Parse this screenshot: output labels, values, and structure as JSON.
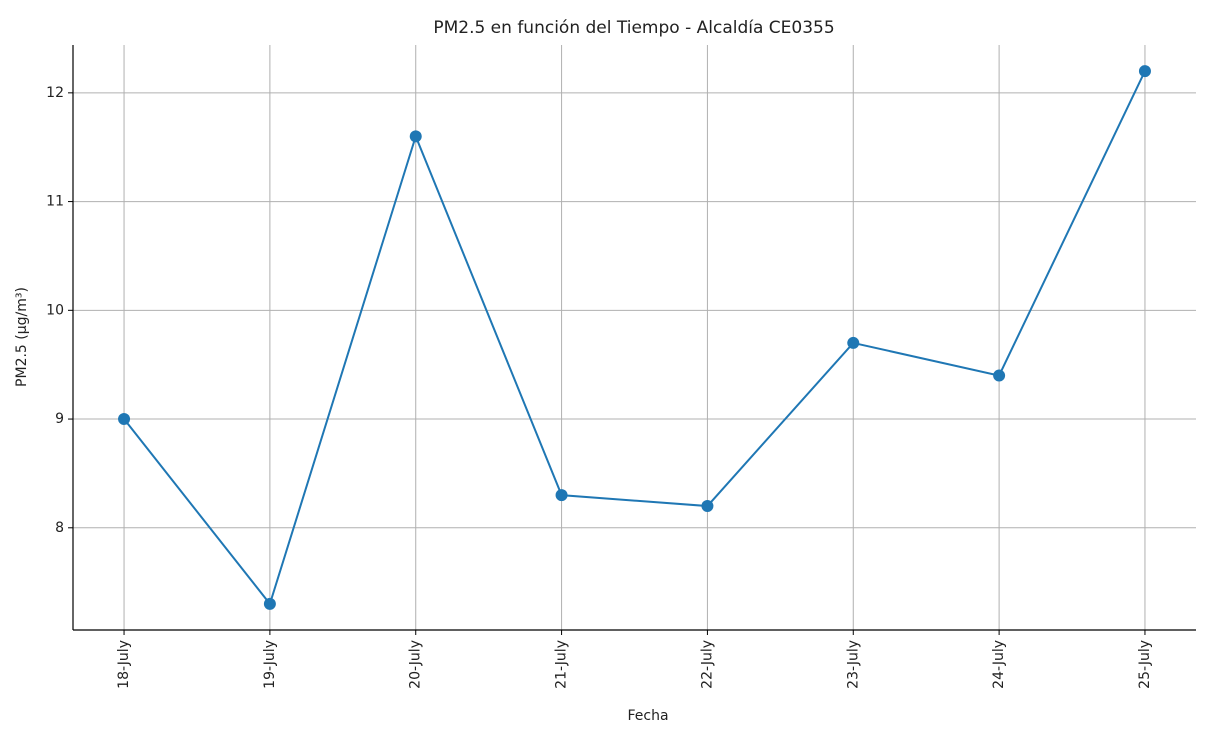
{
  "chart_data": {
    "type": "line",
    "title": "PM2.5 en función del Tiempo - Alcaldía CE0355",
    "x_label": "Fecha",
    "y_label": "PM2.5 (µg/m³)",
    "categories": [
      "18-July",
      "19-July",
      "20-July",
      "21-July",
      "22-July",
      "23-July",
      "24-July",
      "25-July"
    ],
    "series": [
      {
        "name": "PM2.5",
        "color": "#1f77b4",
        "values": [
          9.0,
          7.3,
          11.6,
          8.3,
          8.2,
          9.7,
          9.4,
          12.2
        ]
      }
    ],
    "ylim": [
      7.06,
      12.44
    ],
    "yticks": [
      8,
      9,
      10,
      11,
      12
    ],
    "grid": true
  }
}
